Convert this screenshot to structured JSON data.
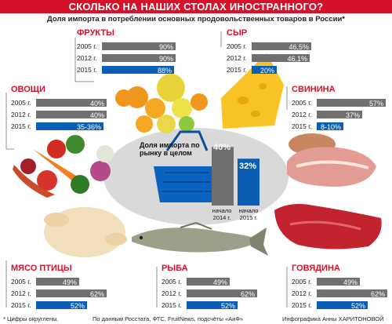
{
  "header": {
    "title": "СКОЛЬКО НА НАШИХ СТОЛАХ ИНОСТРАННОГО?",
    "subtitle": "Доля импорта в потреблении основных продовольственных товаров в России*"
  },
  "colors": {
    "accent": "#d6112a",
    "past_bar": "#6f6f6f",
    "current_bar": "#0a5fb4"
  },
  "chart_data": [
    {
      "type": "bar",
      "title": "ФРУКТЫ",
      "categories": [
        "2005 г.",
        "2012 г.",
        "2015 г."
      ],
      "values": [
        90,
        90,
        88
      ],
      "labels": [
        "90%",
        "90%",
        "88%"
      ],
      "xlim": [
        0,
        100
      ]
    },
    {
      "type": "bar",
      "title": "СЫР",
      "categories": [
        "2005 г.",
        "2012 г.",
        "2015 г."
      ],
      "values": [
        46.5,
        46.1,
        20
      ],
      "labels": [
        "46,5%",
        "46,1%",
        "20%"
      ],
      "xlim": [
        0,
        100
      ]
    },
    {
      "type": "bar",
      "title": "ОВОЩИ",
      "categories": [
        "2005 г.",
        "2012 г.",
        "2015 г."
      ],
      "values": [
        40,
        40,
        36
      ],
      "labels": [
        "40%",
        "40%",
        "35-36%"
      ],
      "xlim": [
        0,
        100
      ]
    },
    {
      "type": "bar",
      "title": "СВИНИНА",
      "categories": [
        "2005 г.",
        "2012 г.",
        "2015 г."
      ],
      "values": [
        57,
        37,
        10
      ],
      "labels": [
        "57%",
        "37%",
        "8-10%"
      ],
      "xlim": [
        0,
        100
      ]
    },
    {
      "type": "bar",
      "title": "МЯСО ПТИЦЫ",
      "categories": [
        "2005 г.",
        "2012 г.",
        "2015 г."
      ],
      "values": [
        49,
        62,
        52
      ],
      "labels": [
        "49%",
        "62%",
        "52%"
      ],
      "xlim": [
        0,
        100
      ]
    },
    {
      "type": "bar",
      "title": "РЫБА",
      "categories": [
        "2005 г.",
        "2012 г.",
        "2015 г."
      ],
      "values": [
        49,
        62,
        52
      ],
      "labels": [
        "49%",
        "62%",
        "52%"
      ],
      "xlim": [
        0,
        100
      ]
    },
    {
      "type": "bar",
      "title": "ГОВЯДИНА",
      "categories": [
        "2005 г.",
        "2012 г.",
        "2015 г."
      ],
      "values": [
        49,
        62,
        52
      ],
      "labels": [
        "49%",
        "62%",
        "52%"
      ],
      "xlim": [
        0,
        100
      ]
    },
    {
      "type": "bar",
      "title": "Доля импорта по рынку в целом",
      "categories": [
        "начало 2014 г.",
        "начало 2015 г."
      ],
      "values": [
        40,
        32
      ],
      "labels": [
        "40%",
        "32%"
      ],
      "ylim": [
        0,
        45
      ]
    }
  ],
  "footer": {
    "note": "* Цифры округлены.",
    "source": "По данным Росстата, ФТС, FruitNews, подсчёты «АиФ»",
    "credit": "Инфографика Анны ХАРИТОНОВОЙ"
  }
}
